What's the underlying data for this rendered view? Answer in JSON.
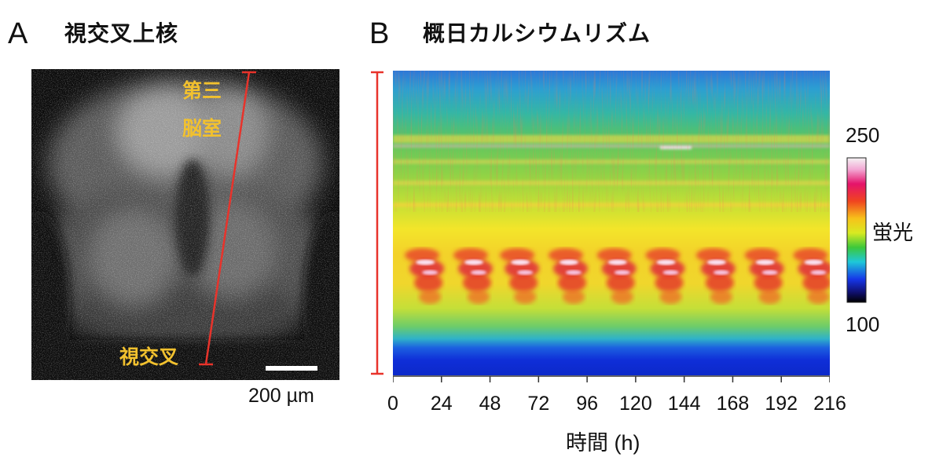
{
  "panel_a": {
    "letter": "A",
    "title": "視交叉上核",
    "label_ventricle_line1": "第三",
    "label_ventricle_line2": "脳室",
    "label_chiasm": "視交叉",
    "scalebar_label": "200 µm"
  },
  "panel_b": {
    "letter": "B",
    "title": "概日カルシウムリズム",
    "colorbar": {
      "max_label": "250",
      "min_label": "100",
      "title": "蛍光"
    }
  },
  "colors": {
    "red_line": "#e8332b",
    "yellow_text": "#f2c12e"
  },
  "chart_data": {
    "type": "heatmap",
    "title": "概日カルシウムリズム",
    "xlabel": "時間 (h)",
    "ylabel": "",
    "x_ticks": [
      0,
      24,
      48,
      72,
      96,
      120,
      144,
      168,
      192,
      216
    ],
    "xlim": [
      0,
      216
    ],
    "color_scale": [
      100,
      250
    ],
    "colorbar_label": "蛍光",
    "peak_times_h": [
      16,
      40,
      63,
      87,
      111,
      135,
      160,
      184,
      208
    ],
    "grid": false
  }
}
